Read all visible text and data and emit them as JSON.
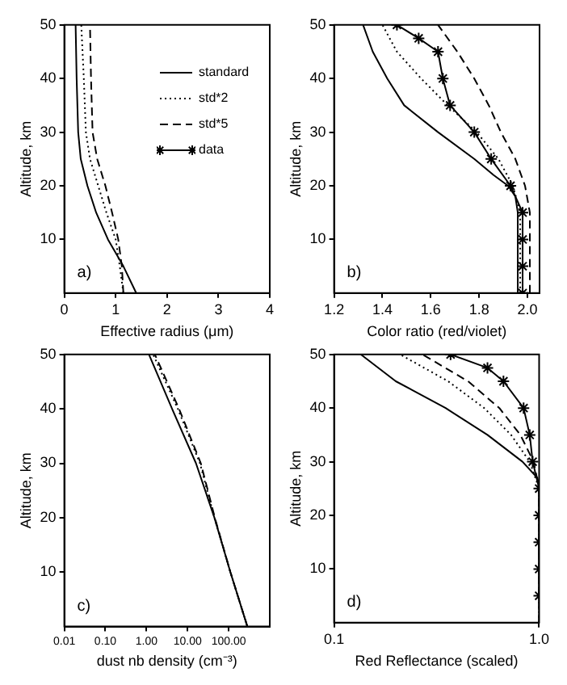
{
  "chart_data": [
    {
      "type": "line",
      "xlabel": "Effective radius (μm)",
      "ylabel": "Altitude, km",
      "xlim": [
        0,
        4
      ],
      "xticks": [
        0,
        1,
        2,
        3,
        4
      ],
      "ylim": [
        0,
        50
      ],
      "yticks": [
        10,
        20,
        30,
        40,
        50
      ],
      "legend": "top right",
      "annotations": [
        "a)"
      ],
      "series": [
        {
          "name": "standard",
          "color": "#000000",
          "line_style": "solid",
          "marker": "none",
          "x": [
            1.4,
            1.15,
            0.85,
            0.62,
            0.45,
            0.32,
            0.27,
            0.24,
            0.22
          ],
          "values": [
            0,
            5,
            10,
            15,
            20,
            25,
            30,
            40,
            50
          ]
        },
        {
          "name": "std*2",
          "color": "#000000",
          "line_style": "dotted",
          "marker": "none",
          "x": [
            1.15,
            1.08,
            1.0,
            0.82,
            0.66,
            0.5,
            0.42,
            0.38,
            0.33
          ],
          "values": [
            0,
            5,
            10,
            15,
            20,
            25,
            30,
            40,
            50
          ]
        },
        {
          "name": "std*5",
          "color": "#000000",
          "line_style": "dashed",
          "marker": "none",
          "x": [
            1.15,
            1.12,
            1.05,
            0.93,
            0.8,
            0.64,
            0.55,
            0.52,
            0.5
          ],
          "values": [
            0,
            5,
            10,
            15,
            20,
            25,
            30,
            40,
            50
          ]
        },
        {
          "name": "data",
          "color": "#000000",
          "line_style": "solid",
          "marker": "cross"
        }
      ]
    },
    {
      "type": "line",
      "xlabel": "Color ratio (red/violet)",
      "ylabel": "Altitude, km",
      "xlim": [
        1.2,
        2.05
      ],
      "xticks": [
        1.2,
        1.4,
        1.6,
        1.8,
        {
          "value": 2,
          "label": "2.0"
        }
      ],
      "ylim": [
        0,
        50
      ],
      "yticks": [
        10,
        20,
        30,
        40,
        50
      ],
      "annotations": [
        "b)"
      ],
      "series": [
        {
          "color": "#000000",
          "line_style": "solid",
          "marker": "none",
          "x": [
            1.96,
            1.96,
            1.95,
            1.92,
            1.86,
            1.78,
            1.63,
            1.49,
            1.42,
            1.36,
            1.32
          ],
          "values": [
            0,
            15,
            18,
            20,
            22,
            25,
            30,
            35,
            40,
            45,
            50
          ]
        },
        {
          "color": "#000000",
          "line_style": "dotted",
          "marker": "none",
          "x": [
            1.97,
            1.97,
            1.94,
            1.88,
            1.79,
            1.67,
            1.56,
            1.46,
            1.4
          ],
          "values": [
            0,
            15,
            20,
            25,
            30,
            35,
            40,
            45,
            50
          ]
        },
        {
          "color": "#000000",
          "line_style": "dashed",
          "marker": "none",
          "x": [
            2.01,
            2.01,
            1.99,
            1.95,
            1.89,
            1.84,
            1.78,
            1.71,
            1.63
          ],
          "values": [
            0,
            15,
            20,
            25,
            30,
            35,
            40,
            45,
            50
          ]
        },
        {
          "color": "#000000",
          "line_style": "solid",
          "marker": "cross",
          "x": [
            1.98,
            1.98,
            1.98,
            1.98,
            1.93,
            1.85,
            1.78,
            1.68,
            1.65,
            1.63,
            1.55,
            1.46
          ],
          "values": [
            0,
            5,
            10,
            15,
            20,
            25,
            30,
            35,
            40,
            45,
            47.5,
            50
          ]
        }
      ]
    },
    {
      "type": "line",
      "xlabel": "dust nb density (cm⁻³)",
      "ylabel": "Altitude, km",
      "log": "x",
      "xlim": [
        0.01,
        1000
      ],
      "xticks": [
        {
          "value": 0.01,
          "label": "0.01"
        },
        {
          "value": 0.1,
          "label": "0.10"
        },
        {
          "value": 1,
          "label": "1.00"
        },
        {
          "value": 10,
          "label": "10.00"
        },
        {
          "value": 100,
          "label": "100.00"
        }
      ],
      "ylim": [
        0,
        50
      ],
      "yticks": [
        10,
        20,
        30,
        40,
        50
      ],
      "annotations": [
        "c)"
      ],
      "series": [
        {
          "color": "#000000",
          "line_style": "solid",
          "marker": "none",
          "x": [
            285,
            110,
            45,
            16,
            4.2,
            1.15
          ],
          "values": [
            0,
            10,
            20,
            30,
            40,
            50
          ]
        },
        {
          "color": "#000000",
          "line_style": "dotted",
          "marker": "none",
          "x": [
            285,
            110,
            45,
            20,
            5.8,
            1.45
          ],
          "values": [
            0,
            10,
            20,
            30,
            40,
            50
          ]
        },
        {
          "color": "#000000",
          "line_style": "dashed",
          "marker": "none",
          "x": [
            285,
            110,
            46,
            21,
            6.2,
            1.6
          ],
          "values": [
            0,
            10,
            20,
            30,
            40,
            50
          ]
        }
      ]
    },
    {
      "type": "line",
      "xlabel": "Red Reflectance (scaled)",
      "ylabel": "Altitude, km",
      "log": "x",
      "xlim": [
        0.1,
        1
      ],
      "xticks": [
        0.1,
        {
          "value": 1,
          "label": "1.0"
        }
      ],
      "ylim": [
        0,
        50
      ],
      "yticks": [
        10,
        20,
        30,
        40,
        50
      ],
      "annotations": [
        "d)"
      ],
      "series": [
        {
          "color": "#000000",
          "line_style": "solid",
          "marker": "none",
          "x": [
            1,
            1,
            0.98,
            0.83,
            0.56,
            0.35,
            0.2,
            0.135
          ],
          "values": [
            0,
            25,
            27,
            30,
            35,
            40,
            45,
            50
          ]
        },
        {
          "color": "#000000",
          "line_style": "dotted",
          "marker": "none",
          "x": [
            1,
            1,
            0.9,
            0.73,
            0.54,
            0.36,
            0.21
          ],
          "values": [
            0,
            25,
            30,
            35,
            40,
            45,
            50
          ]
        },
        {
          "color": "#000000",
          "line_style": "dashed",
          "marker": "none",
          "x": [
            1,
            1,
            0.94,
            0.81,
            0.64,
            0.45,
            0.27
          ],
          "values": [
            0,
            25,
            30,
            35,
            40,
            45,
            50
          ]
        },
        {
          "color": "#000000",
          "line_style": "solid",
          "marker": "cross",
          "x": [
            1,
            1,
            1,
            1,
            1,
            0.93,
            0.9,
            0.84,
            0.67,
            0.56,
            0.37
          ],
          "values": [
            5,
            10,
            15,
            20,
            25,
            30,
            35,
            40,
            45,
            47.5,
            50
          ]
        }
      ]
    }
  ]
}
